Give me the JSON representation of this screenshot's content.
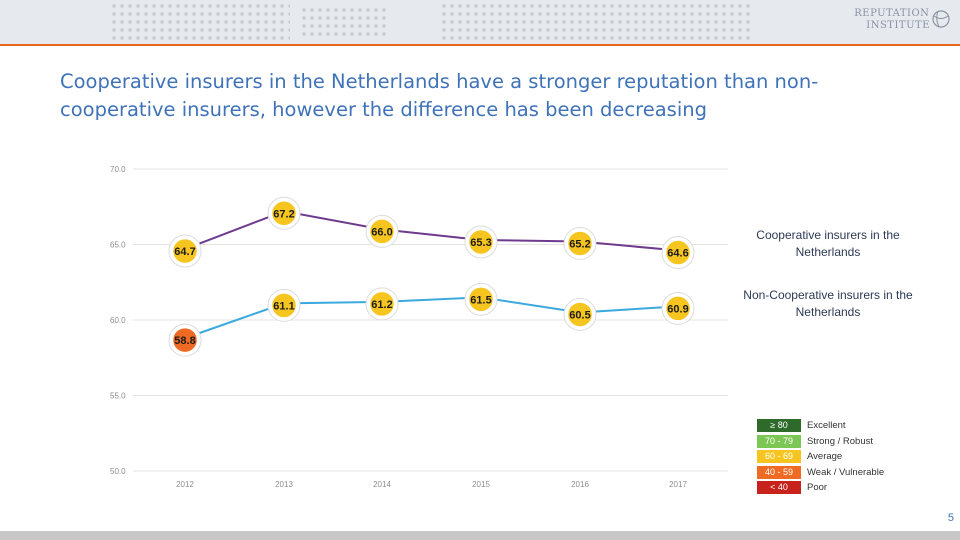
{
  "header": {
    "logo_line1": "REPUTATION",
    "logo_line2": "INSTITUTE"
  },
  "title": "Cooperative insurers in the Netherlands have a stronger reputation than non-cooperative insurers, however the difference has been decreasing",
  "legend": {
    "series1": "Cooperative insurers in the Netherlands",
    "series2": "Non-Cooperative insurers in the Netherlands"
  },
  "scale": [
    {
      "range": "≥ 80",
      "label": "Excellent",
      "color": "#2e6b2b"
    },
    {
      "range": "70 - 79",
      "label": "Strong / Robust",
      "color": "#7cc653"
    },
    {
      "range": "60 - 69",
      "label": "Average",
      "color": "#f7c520"
    },
    {
      "range": "40 - 59",
      "label": "Weak / Vulnerable",
      "color": "#ef6a23"
    },
    {
      "range": "< 40",
      "label": "Poor",
      "color": "#c8221c"
    }
  ],
  "page_number": "5",
  "chart_data": {
    "type": "line",
    "categories": [
      "2012",
      "2013",
      "2014",
      "2015",
      "2016",
      "2017"
    ],
    "ylim": [
      50,
      70
    ],
    "yticks": [
      "70.0",
      "65.0",
      "60.0",
      "55.0",
      "50.0"
    ],
    "grid": true,
    "series": [
      {
        "name": "Cooperative insurers in the Netherlands",
        "color": "#6e3a8e",
        "values": [
          64.7,
          67.2,
          66.0,
          65.3,
          65.2,
          64.6
        ],
        "labels": [
          "64.7",
          "67.2",
          "66.0",
          "65.3",
          "65.2",
          "64.6"
        ],
        "label_colors": [
          "#f7c520",
          "#f7c520",
          "#f7c520",
          "#f7c520",
          "#f7c520",
          "#f7c520"
        ]
      },
      {
        "name": "Non-Cooperative insurers in the Netherlands",
        "color": "#3aa9de",
        "values": [
          58.8,
          61.1,
          61.2,
          61.5,
          60.5,
          60.9
        ],
        "labels": [
          "58.8",
          "61.1",
          "61.2",
          "61.5",
          "60.5",
          "60.9"
        ],
        "label_colors": [
          "#ef6a23",
          "#f7c520",
          "#f7c520",
          "#f7c520",
          "#f7c520",
          "#f7c520"
        ]
      }
    ]
  }
}
